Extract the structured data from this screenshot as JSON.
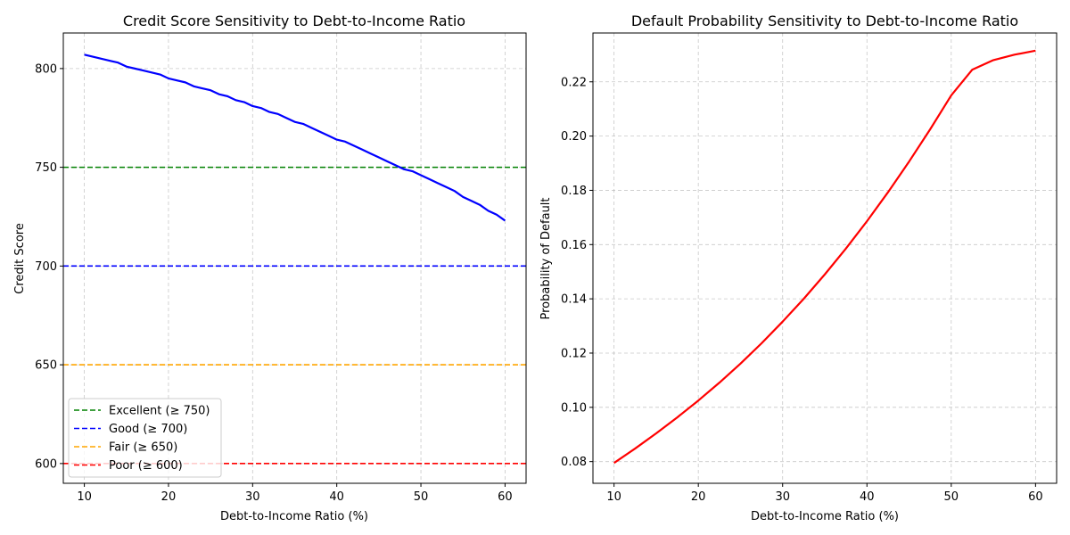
{
  "chart_data": [
    {
      "type": "line",
      "title": "Credit Score Sensitivity to Debt-to-Income Ratio",
      "xlabel": "Debt-to-Income Ratio (%)",
      "ylabel": "Credit Score",
      "xlim": [
        7.5,
        62.5
      ],
      "ylim": [
        590,
        818
      ],
      "xticks": [
        10,
        20,
        30,
        40,
        50,
        60
      ],
      "yticks": [
        600,
        650,
        700,
        750,
        800
      ],
      "grid": true,
      "legend_position": "lower-left",
      "series": [
        {
          "color": "#0000ff",
          "style": "solid",
          "x": [
            10,
            11,
            12,
            13,
            14,
            15,
            16,
            17,
            18,
            19,
            20,
            21,
            22,
            23,
            24,
            25,
            26,
            27,
            28,
            29,
            30,
            31,
            32,
            33,
            34,
            35,
            36,
            37,
            38,
            39,
            40,
            41,
            42,
            43,
            44,
            45,
            46,
            47,
            48,
            49,
            50,
            51,
            52,
            53,
            54,
            55,
            56,
            57,
            58,
            59,
            60
          ],
          "y": [
            807,
            806,
            805,
            804,
            803,
            801,
            800,
            799,
            798,
            797,
            795,
            794,
            793,
            791,
            790,
            789,
            787,
            786,
            784,
            783,
            781,
            780,
            778,
            777,
            775,
            773,
            772,
            770,
            768,
            766,
            764,
            763,
            761,
            759,
            757,
            755,
            753,
            751,
            749,
            748,
            746,
            744,
            742,
            740,
            738,
            735,
            733,
            731,
            728,
            726,
            723
          ]
        }
      ],
      "reference_lines": [
        {
          "name": "Excellent (≥ 750)",
          "y": 750,
          "color": "#008000",
          "style": "dashed"
        },
        {
          "name": "Good (≥ 700)",
          "y": 700,
          "color": "#0000ff",
          "style": "dashed"
        },
        {
          "name": "Fair (≥ 650)",
          "y": 650,
          "color": "#ffa500",
          "style": "dashed"
        },
        {
          "name": "Poor (≥ 600)",
          "y": 600,
          "color": "#ff0000",
          "style": "dashed"
        }
      ]
    },
    {
      "type": "line",
      "title": "Default Probability Sensitivity to Debt-to-Income Ratio",
      "xlabel": "Debt-to-Income Ratio (%)",
      "ylabel": "Probability of Default",
      "xlim": [
        7.5,
        62.5
      ],
      "ylim": [
        0.072,
        0.238
      ],
      "xticks": [
        10,
        20,
        30,
        40,
        50,
        60
      ],
      "yticks": [
        0.08,
        0.1,
        0.12,
        0.14,
        0.16,
        0.18,
        0.2,
        0.22
      ],
      "ytick_labels": [
        "0.08",
        "0.10",
        "0.12",
        "0.14",
        "0.16",
        "0.18",
        "0.20",
        "0.22"
      ],
      "grid": true,
      "series": [
        {
          "color": "#ff0000",
          "style": "solid",
          "x": [
            10,
            12.5,
            15,
            17.5,
            20,
            22.5,
            25,
            27.5,
            30,
            32.5,
            35,
            37.5,
            40,
            42.5,
            45,
            47.5,
            50,
            52.5,
            55,
            57.5,
            60
          ],
          "y": [
            0.0795,
            0.0848,
            0.0904,
            0.0963,
            0.1025,
            0.1091,
            0.1161,
            0.1236,
            0.1316,
            0.14,
            0.149,
            0.1585,
            0.1686,
            0.1793,
            0.1906,
            0.2025,
            0.215,
            0.2245,
            0.228,
            0.23,
            0.2315
          ]
        }
      ]
    }
  ]
}
